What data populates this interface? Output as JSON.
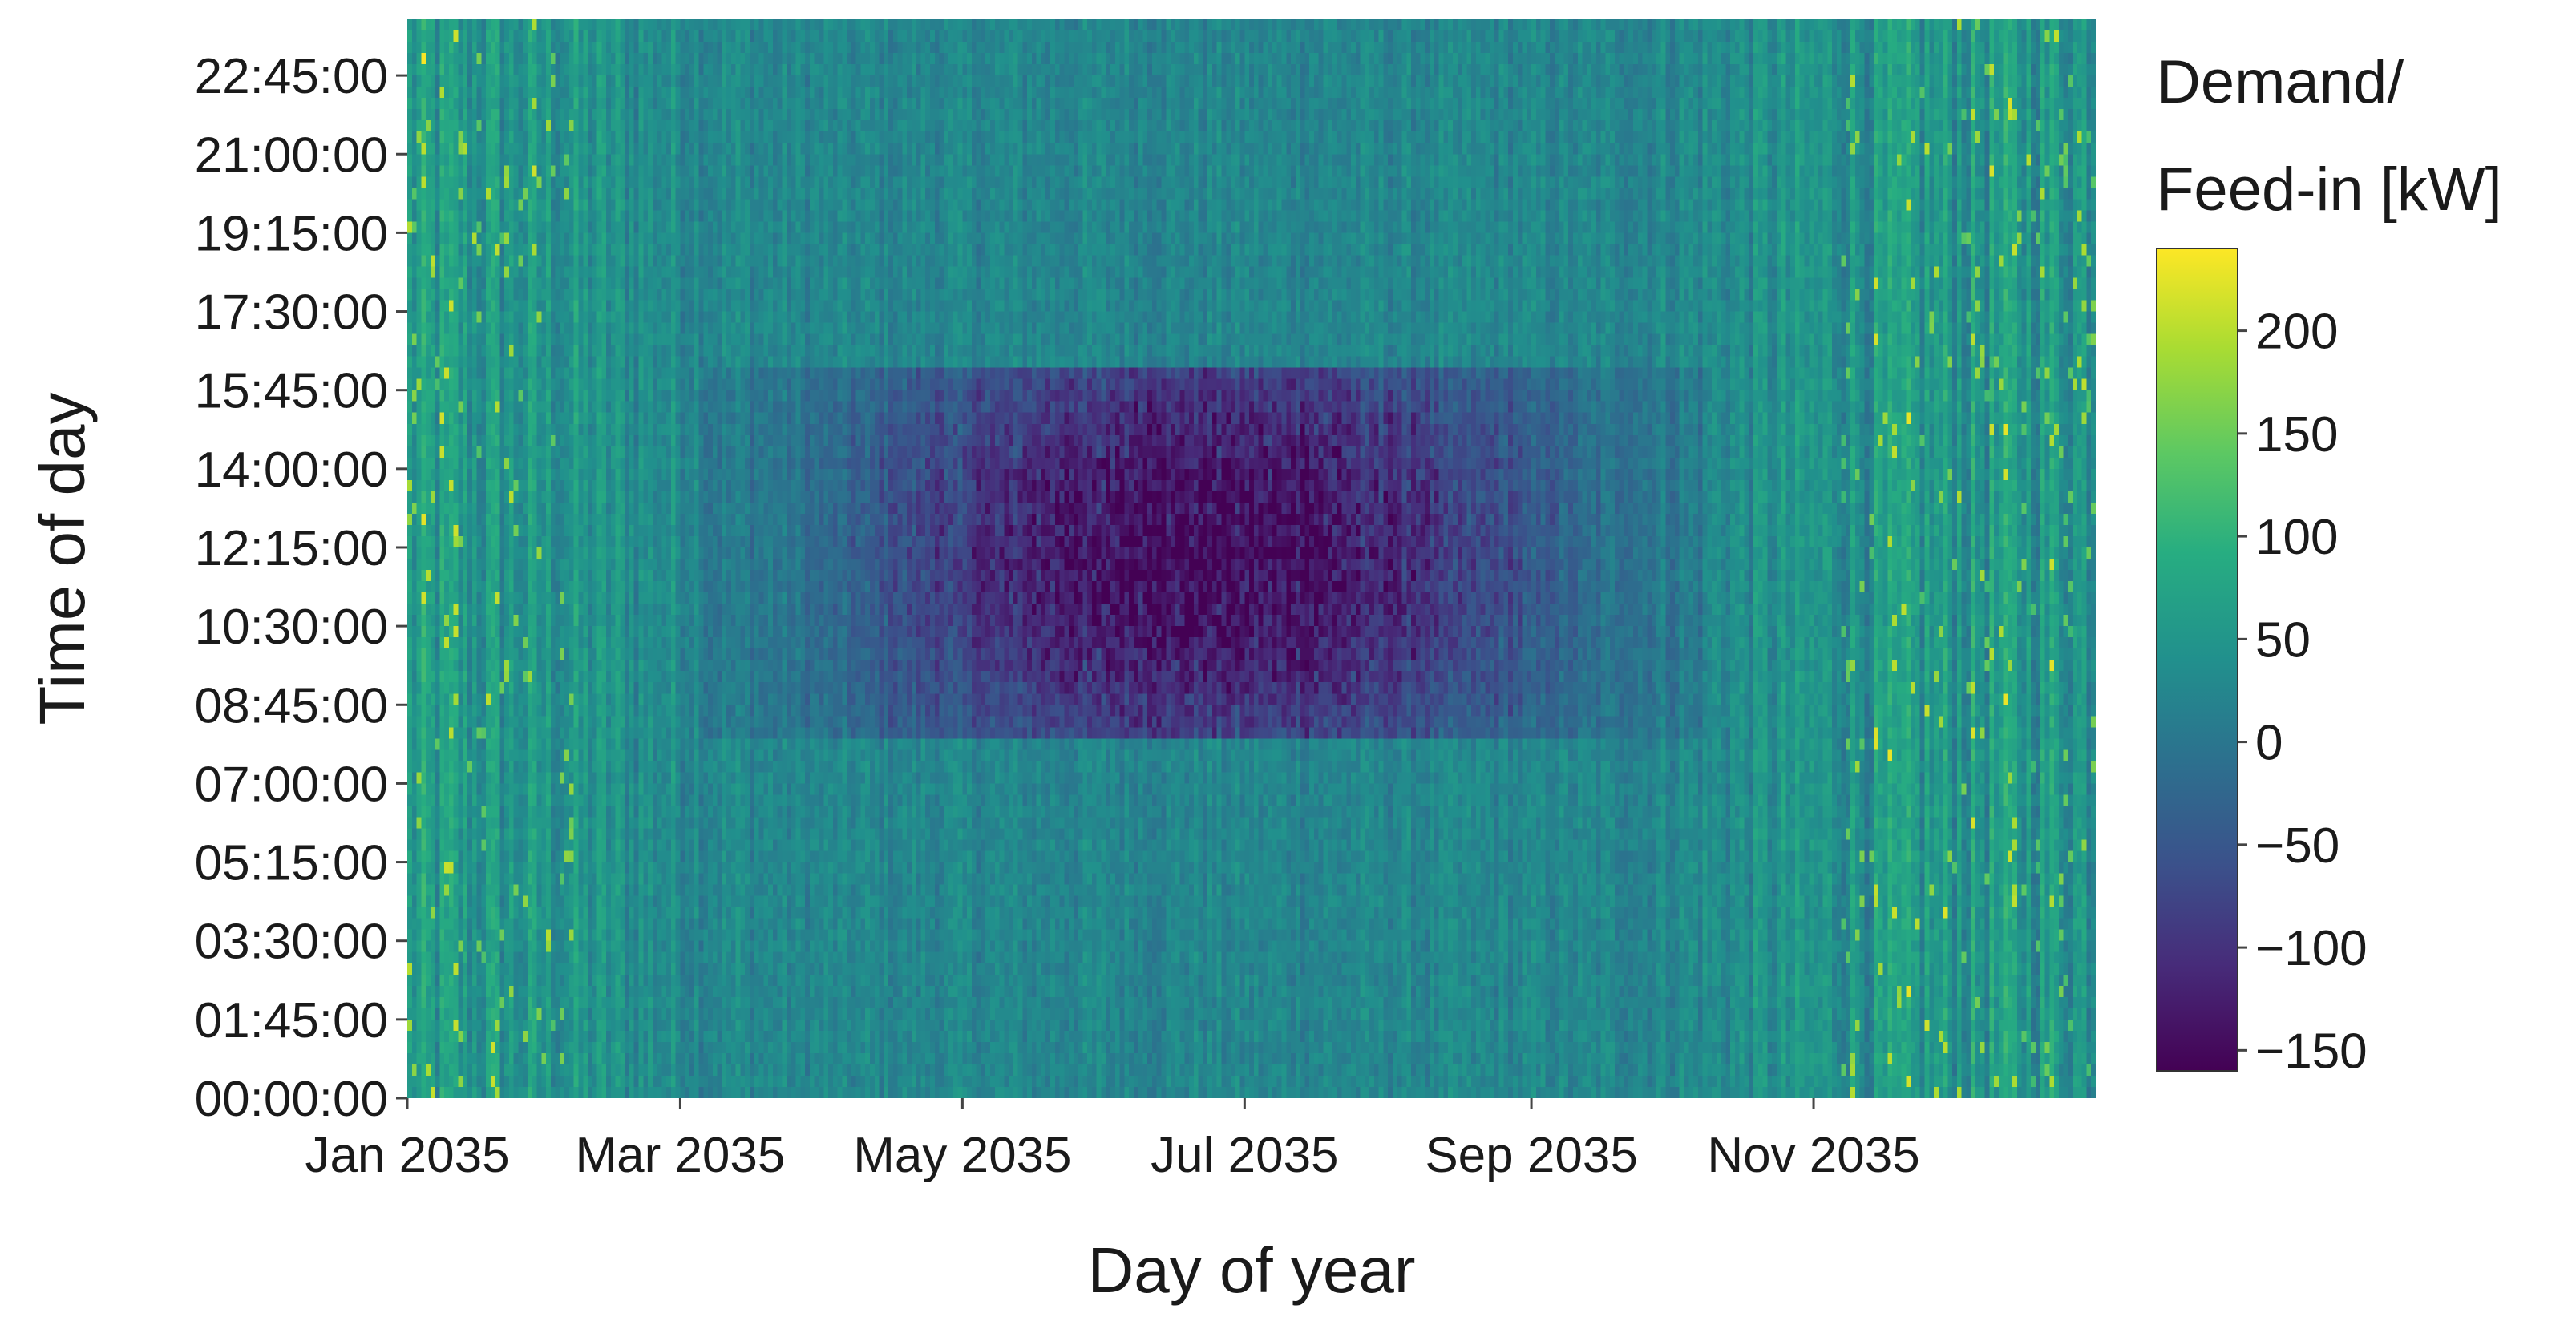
{
  "chart_data": {
    "type": "heatmap",
    "title": "",
    "xlabel": "Day of year",
    "ylabel": "Time of day",
    "colorbar_label_lines": [
      "Demand/",
      "Feed-in [kW]"
    ],
    "x_ticks": [
      {
        "label": "Jan 2035",
        "day": 0
      },
      {
        "label": "Mar 2035",
        "day": 59
      },
      {
        "label": "May 2035",
        "day": 120
      },
      {
        "label": "Jul 2035",
        "day": 181
      },
      {
        "label": "Sep 2035",
        "day": 243
      },
      {
        "label": "Nov 2035",
        "day": 304
      }
    ],
    "y_ticks": [
      {
        "label": "00:00:00",
        "hour": 0
      },
      {
        "label": "01:45:00",
        "hour": 1.75
      },
      {
        "label": "03:30:00",
        "hour": 3.5
      },
      {
        "label": "05:15:00",
        "hour": 5.25
      },
      {
        "label": "07:00:00",
        "hour": 7
      },
      {
        "label": "08:45:00",
        "hour": 8.75
      },
      {
        "label": "10:30:00",
        "hour": 10.5
      },
      {
        "label": "12:15:00",
        "hour": 12.25
      },
      {
        "label": "14:00:00",
        "hour": 14
      },
      {
        "label": "15:45:00",
        "hour": 15.75
      },
      {
        "label": "17:30:00",
        "hour": 17.5
      },
      {
        "label": "19:15:00",
        "hour": 19.25
      },
      {
        "label": "21:00:00",
        "hour": 21
      },
      {
        "label": "22:45:00",
        "hour": 22.75
      }
    ],
    "x_range_days": [
      0,
      365
    ],
    "y_range_hours": [
      0,
      24
    ],
    "time_resolution": "15 min",
    "colorbar_ticks": [
      -150,
      -100,
      -50,
      0,
      50,
      100,
      150,
      200
    ],
    "color_range": [
      -160,
      240
    ],
    "colormap": "viridis",
    "approx_pattern": {
      "baseline_kw": 25,
      "winter_night_kw": 60,
      "summer_midday_min_kw": -150,
      "midday_dip_hours": [
        8,
        16
      ],
      "strongest_dip_months": [
        "May 2035",
        "Jun 2035",
        "Aug 2035"
      ]
    }
  }
}
